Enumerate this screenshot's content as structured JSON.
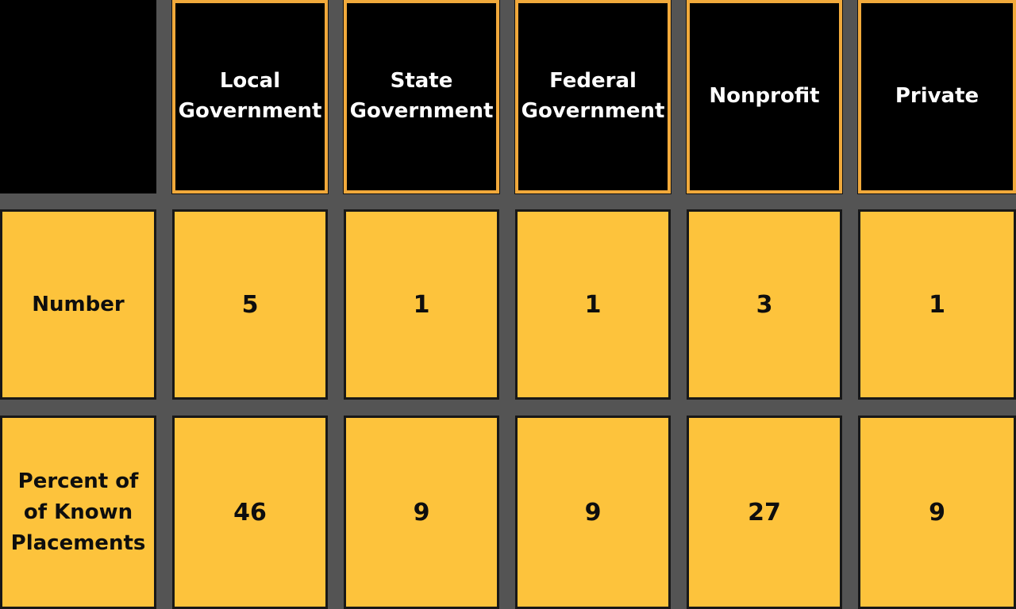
{
  "table": {
    "corner_label": "",
    "columns": [
      "Local Government",
      "State Government",
      "Federal Government",
      "Nonprofit",
      "Private"
    ],
    "rows": [
      {
        "label": "Number",
        "values": [
          "5",
          "1",
          "1",
          "3",
          "1"
        ]
      },
      {
        "label": "Percent of of Known Placements",
        "values": [
          "46",
          "9",
          "9",
          "27",
          "9"
        ]
      }
    ]
  },
  "colors": {
    "background_gray": "#545454",
    "cell_yellow": "#FDC33C",
    "header_black": "#000000",
    "header_border_gold": "#F1A93B",
    "data_border_black": "#181818",
    "header_text": "#ffffff",
    "data_text": "#0e0e0e"
  },
  "chart_data": {
    "type": "table",
    "columns": [
      "",
      "Local Government",
      "State Government",
      "Federal Government",
      "Nonprofit",
      "Private"
    ],
    "rows": [
      [
        "Number",
        5,
        1,
        1,
        3,
        1
      ],
      [
        "Percent of of Known Placements",
        46,
        9,
        9,
        27,
        9
      ]
    ],
    "title": "",
    "notes_layout": "header row black cells with gold borders; body rows gold cells with black borders on dark gray background"
  }
}
